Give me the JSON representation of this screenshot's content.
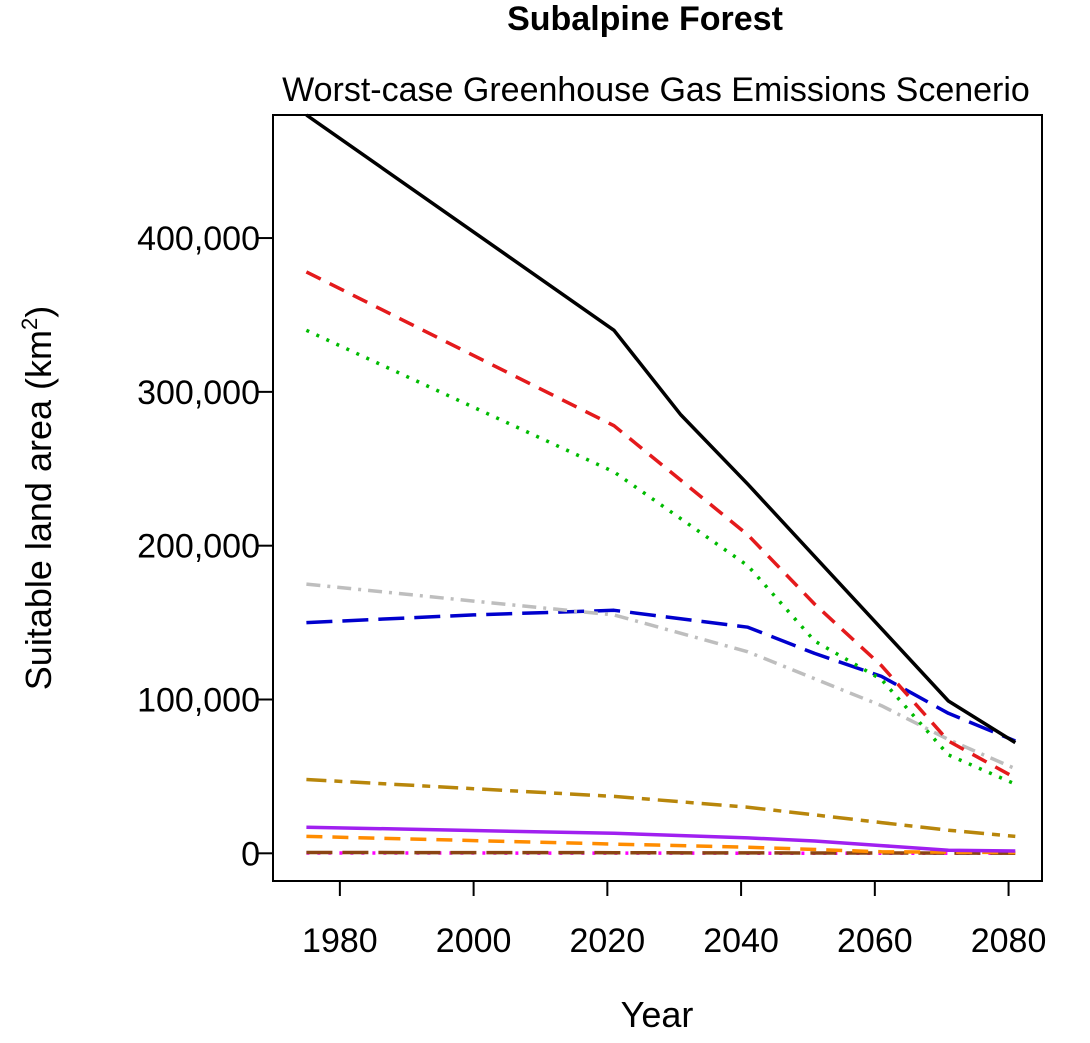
{
  "chart_data": {
    "type": "line",
    "title": "Subalpine Forest",
    "subtitle": "Worst-case Greenhouse Gas Emissions Scenerio",
    "xlabel": "Year",
    "ylabel_main": "Suitable land area (km",
    "ylabel_sup": "2",
    "ylabel_close": ")",
    "xlim": [
      1970,
      2085
    ],
    "ylim": [
      -18000,
      480000
    ],
    "x_ticks": [
      1980,
      2000,
      2020,
      2040,
      2060,
      2080
    ],
    "x_tick_labels": [
      "1980",
      "2000",
      "2020",
      "2040",
      "2060",
      "2080"
    ],
    "y_ticks": [
      0,
      100000,
      200000,
      300000,
      400000
    ],
    "y_tick_labels": [
      "0",
      "100,000",
      "200,000",
      "300,000",
      "400,000"
    ],
    "grid": false,
    "legend": "none",
    "series": [
      {
        "color": "#000000",
        "dash": "solid",
        "x": [
          1975,
          2021,
          2031,
          2041,
          2051,
          2061,
          2071,
          2081
        ],
        "y": [
          480000,
          340000,
          285000,
          240000,
          193000,
          146000,
          99000,
          72000
        ]
      },
      {
        "color": "#e41a1c",
        "dash": "dash",
        "x": [
          1975,
          2021,
          2041,
          2051,
          2061,
          2071,
          2081
        ],
        "y": [
          378000,
          278000,
          207000,
          162000,
          122000,
          73000,
          49000
        ]
      },
      {
        "color": "#00bb00",
        "dash": "dot",
        "x": [
          1975,
          2021,
          2041,
          2051,
          2061,
          2071,
          2081
        ],
        "y": [
          340000,
          248000,
          187000,
          138000,
          113000,
          64000,
          45000
        ]
      },
      {
        "color": "#bebebe",
        "dash": "dashdot",
        "x": [
          1975,
          2000,
          2021,
          2041,
          2061,
          2071,
          2081
        ],
        "y": [
          175000,
          164000,
          155000,
          131000,
          96000,
          74000,
          55000
        ]
      },
      {
        "color": "#0000cd",
        "dash": "longdash",
        "x": [
          1975,
          2000,
          2021,
          2041,
          2051,
          2061,
          2071,
          2081
        ],
        "y": [
          150000,
          155000,
          158000,
          147000,
          130000,
          115000,
          91000,
          73000
        ]
      },
      {
        "color": "#b8860b",
        "dash": "twodash",
        "x": [
          1975,
          2000,
          2021,
          2041,
          2061,
          2071,
          2081
        ],
        "y": [
          48000,
          42000,
          37000,
          30000,
          20000,
          15000,
          11000
        ]
      },
      {
        "color": "#a020f0",
        "dash": "solid",
        "x": [
          1975,
          2021,
          2041,
          2051,
          2061,
          2071,
          2081
        ],
        "y": [
          17000,
          13000,
          10000,
          8000,
          5000,
          2000,
          1500
        ]
      },
      {
        "color": "#ff8c00",
        "dash": "dash",
        "x": [
          1975,
          2021,
          2041,
          2061,
          2081
        ],
        "y": [
          11000,
          6000,
          4000,
          1000,
          500
        ]
      },
      {
        "color": "#8b4513",
        "dash": "longdash",
        "x": [
          1975,
          2021,
          2041,
          2061,
          2081
        ],
        "y": [
          500,
          400,
          300,
          200,
          100
        ]
      },
      {
        "color": "#ff00ff",
        "dash": "dot",
        "x": [
          1975,
          2021,
          2041,
          2061,
          2081
        ],
        "y": [
          200,
          150,
          100,
          50,
          0
        ]
      }
    ]
  }
}
